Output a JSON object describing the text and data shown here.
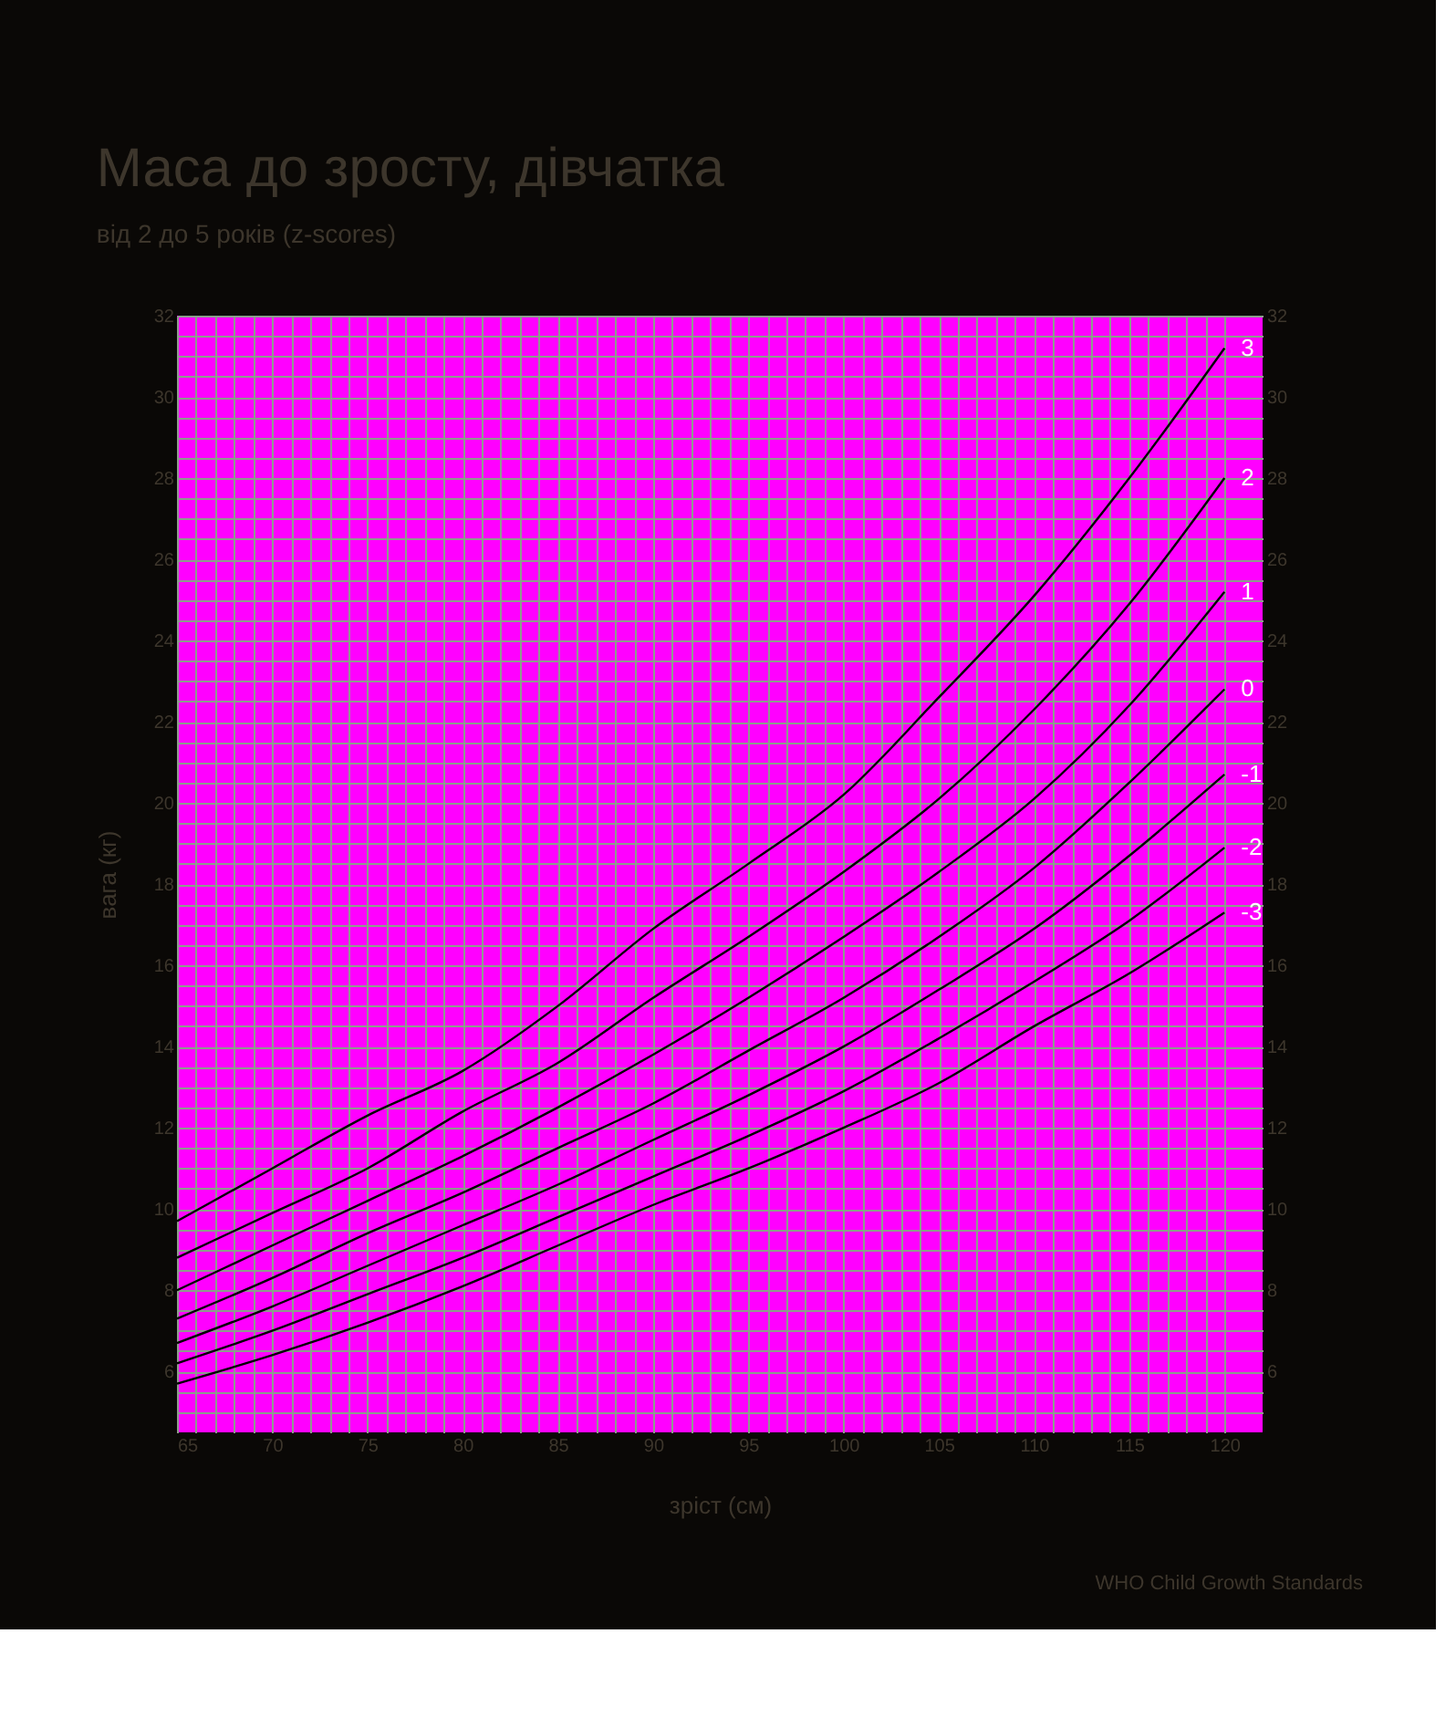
{
  "chart_data": {
    "type": "line",
    "title": "Маса до зросту, дівчатка",
    "subtitle": "від 2 до 5 років (z-scores)",
    "xlabel": "зріст (см)",
    "ylabel": "вага (кг)",
    "annotations": [
      "WHO Child Growth Standards"
    ],
    "x": [
      65,
      70,
      75,
      80,
      85,
      90,
      95,
      100,
      105,
      110,
      115,
      120
    ],
    "series": [
      {
        "name": "3",
        "color": "#000000",
        "values": [
          9.7,
          11.0,
          12.3,
          13.4,
          15.0,
          16.9,
          18.5,
          20.2,
          22.6,
          25.1,
          28.0,
          31.2
        ]
      },
      {
        "name": "2",
        "color": "#000000",
        "values": [
          8.8,
          9.9,
          11.0,
          12.4,
          13.6,
          15.2,
          16.7,
          18.3,
          20.1,
          22.3,
          24.9,
          28.0
        ]
      },
      {
        "name": "1",
        "color": "#000000",
        "values": [
          8.0,
          9.1,
          10.2,
          11.3,
          12.5,
          13.8,
          15.2,
          16.7,
          18.3,
          20.1,
          22.4,
          25.2
        ]
      },
      {
        "name": "0",
        "color": "#000000",
        "values": [
          7.3,
          8.3,
          9.4,
          10.4,
          11.5,
          12.6,
          13.9,
          15.2,
          16.7,
          18.4,
          20.5,
          22.8
        ]
      },
      {
        "name": "-1",
        "color": "#000000",
        "values": [
          6.7,
          7.6,
          8.6,
          9.6,
          10.6,
          11.7,
          12.8,
          14.0,
          15.4,
          16.9,
          18.7,
          20.7
        ]
      },
      {
        "name": "-2",
        "color": "#000000",
        "values": [
          6.2,
          7.0,
          7.9,
          8.8,
          9.8,
          10.8,
          11.8,
          12.9,
          14.2,
          15.6,
          17.1,
          18.9
        ]
      },
      {
        "name": "-3",
        "color": "#000000",
        "values": [
          5.7,
          6.4,
          7.2,
          8.1,
          9.1,
          10.1,
          11.0,
          12.0,
          13.1,
          14.5,
          15.8,
          17.3
        ]
      }
    ],
    "xlim": [
      65,
      122
    ],
    "ylim": [
      4.5,
      32
    ],
    "y2lim": [
      4.5,
      32
    ],
    "xticks": [
      65,
      {
        "value": 66,
        "label": null
      },
      {
        "value": 67,
        "label": null
      },
      {
        "value": 68,
        "label": null
      },
      {
        "value": 69,
        "label": null
      },
      70,
      {
        "value": 71,
        "label": null
      },
      {
        "value": 72,
        "label": null
      },
      {
        "value": 73,
        "label": null
      },
      {
        "value": 74,
        "label": null
      },
      75,
      {
        "value": 76,
        "label": null
      },
      {
        "value": 77,
        "label": null
      },
      {
        "value": 78,
        "label": null
      },
      {
        "value": 79,
        "label": null
      },
      80,
      {
        "value": 81,
        "label": null
      },
      {
        "value": 82,
        "label": null
      },
      {
        "value": 83,
        "label": null
      },
      {
        "value": 84,
        "label": null
      },
      85,
      {
        "value": 86,
        "label": null
      },
      {
        "value": 87,
        "label": null
      },
      {
        "value": 88,
        "label": null
      },
      {
        "value": 89,
        "label": null
      },
      90,
      {
        "value": 91,
        "label": null
      },
      {
        "value": 92,
        "label": null
      },
      {
        "value": 93,
        "label": null
      },
      {
        "value": 94,
        "label": null
      },
      95,
      {
        "value": 96,
        "label": null
      },
      {
        "value": 97,
        "label": null
      },
      {
        "value": 98,
        "label": null
      },
      {
        "value": 99,
        "label": null
      },
      100,
      {
        "value": 101,
        "label": null
      },
      {
        "value": 102,
        "label": null
      },
      {
        "value": 103,
        "label": null
      },
      {
        "value": 104,
        "label": null
      },
      105,
      {
        "value": 106,
        "label": null
      },
      {
        "value": 107,
        "label": null
      },
      {
        "value": 108,
        "label": null
      },
      {
        "value": 109,
        "label": null
      },
      110,
      {
        "value": 111,
        "label": null
      },
      {
        "value": 112,
        "label": null
      },
      {
        "value": 113,
        "label": null
      },
      {
        "value": 114,
        "label": null
      },
      115,
      {
        "value": 116,
        "label": null
      },
      {
        "value": 117,
        "label": null
      },
      {
        "value": 118,
        "label": null
      },
      {
        "value": 119,
        "label": null
      },
      120
    ],
    "yticks": [
      {
        "value": 5,
        "label": null
      },
      {
        "value": 5.5,
        "label": null
      },
      6,
      {
        "value": 6.5,
        "label": null
      },
      {
        "value": 7,
        "label": null
      },
      {
        "value": 7.5,
        "label": null
      },
      8,
      {
        "value": 8.5,
        "label": null
      },
      {
        "value": 9,
        "label": null
      },
      {
        "value": 9.5,
        "label": null
      },
      10,
      {
        "value": 10.5,
        "label": null
      },
      {
        "value": 11,
        "label": null
      },
      {
        "value": 11.5,
        "label": null
      },
      12,
      {
        "value": 12.5,
        "label": null
      },
      {
        "value": 13,
        "label": null
      },
      {
        "value": 13.5,
        "label": null
      },
      14,
      {
        "value": 14.5,
        "label": null
      },
      {
        "value": 15,
        "label": null
      },
      {
        "value": 15.5,
        "label": null
      },
      16,
      {
        "value": 16.5,
        "label": null
      },
      {
        "value": 17,
        "label": null
      },
      {
        "value": 17.5,
        "label": null
      },
      18,
      {
        "value": 18.5,
        "label": null
      },
      {
        "value": 19,
        "label": null
      },
      {
        "value": 19.5,
        "label": null
      },
      20,
      {
        "value": 20.5,
        "label": null
      },
      {
        "value": 21,
        "label": null
      },
      {
        "value": 21.5,
        "label": null
      },
      22,
      {
        "value": 22.5,
        "label": null
      },
      {
        "value": 23,
        "label": null
      },
      {
        "value": 23.5,
        "label": null
      },
      24,
      {
        "value": 24.5,
        "label": null
      },
      {
        "value": 25,
        "label": null
      },
      {
        "value": 25.5,
        "label": null
      },
      26,
      {
        "value": 26.5,
        "label": null
      },
      {
        "value": 27,
        "label": null
      },
      {
        "value": 27.5,
        "label": null
      },
      28,
      {
        "value": 28.5,
        "label": null
      },
      {
        "value": 29,
        "label": null
      },
      {
        "value": 29.5,
        "label": null
      },
      30,
      {
        "value": 30.5,
        "label": null
      },
      {
        "value": 31,
        "label": null
      },
      {
        "value": 31.5,
        "label": null
      },
      32
    ],
    "y2ticks": [
      6,
      8,
      10,
      12,
      14,
      16,
      18,
      20,
      22,
      24,
      26,
      28,
      30,
      32
    ],
    "grid": true,
    "legend": false,
    "line_style": "solid"
  }
}
